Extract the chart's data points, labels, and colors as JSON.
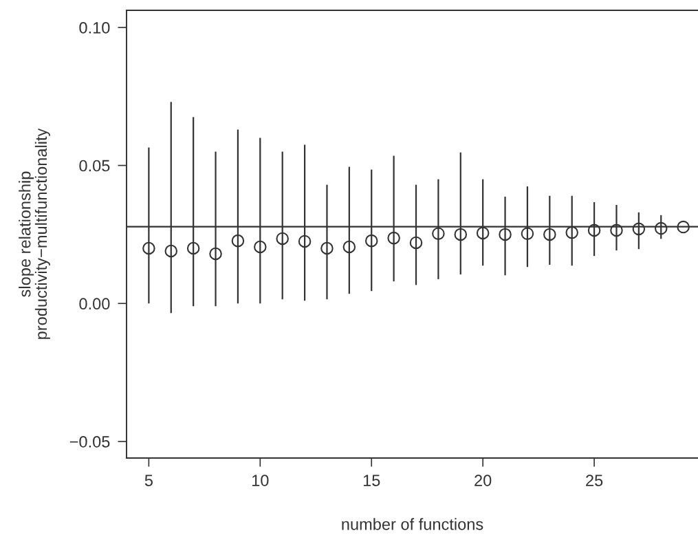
{
  "chart_data": {
    "type": "scatter",
    "xlabel": "number of functions",
    "ylabel": "slope relationship\nproductivity−multifunctionality",
    "x": [
      5,
      6,
      7,
      8,
      9,
      10,
      11,
      12,
      13,
      14,
      15,
      16,
      17,
      18,
      19,
      20,
      21,
      22,
      23,
      24,
      25,
      26,
      27,
      28,
      29
    ],
    "values": [
      0.02,
      0.019,
      0.02,
      0.018,
      0.0227,
      0.0205,
      0.0235,
      0.0225,
      0.02,
      0.0205,
      0.0227,
      0.0237,
      0.022,
      0.0253,
      0.025,
      0.0255,
      0.025,
      0.0253,
      0.025,
      0.0257,
      0.0265,
      0.0265,
      0.027,
      0.0272,
      0.0277
    ],
    "errors": [
      [
        0.0,
        0.0565
      ],
      [
        -0.0035,
        0.073
      ],
      [
        -0.001,
        0.0675
      ],
      [
        -0.001,
        0.055
      ],
      [
        0.0,
        0.063
      ],
      [
        0.0,
        0.06
      ],
      [
        0.0015,
        0.055
      ],
      [
        0.001,
        0.0575
      ],
      [
        0.0015,
        0.043
      ],
      [
        0.0035,
        0.0495
      ],
      [
        0.0045,
        0.0485
      ],
      [
        0.008,
        0.0535
      ],
      [
        0.0067,
        0.043
      ],
      [
        0.0088,
        0.045
      ],
      [
        0.0105,
        0.0547
      ],
      [
        0.0137,
        0.045
      ],
      [
        0.0102,
        0.0387
      ],
      [
        0.0132,
        0.0424
      ],
      [
        0.014,
        0.039
      ],
      [
        0.0137,
        0.039
      ],
      [
        0.0172,
        0.0367
      ],
      [
        0.0192,
        0.0357
      ],
      [
        0.0197,
        0.033
      ],
      [
        0.0234,
        0.032
      ],
      null
    ],
    "color": "#333333",
    "marker": "circle",
    "ref_lines": [
      {
        "axis": "y",
        "value": 0.0278,
        "color": "#333333"
      }
    ],
    "xlim": [
      4.0,
      29.66
    ],
    "xticks": [
      5,
      10,
      15,
      20,
      25
    ],
    "ylim": [
      -0.056,
      0.1062
    ],
    "yticks": [
      {
        "value": -0.05,
        "label": "−0.05"
      },
      {
        "value": 0,
        "label": "0.00"
      },
      {
        "value": 0.05,
        "label": "0.05"
      },
      {
        "value": 0.1,
        "label": "0.10"
      }
    ],
    "grid": false
  }
}
